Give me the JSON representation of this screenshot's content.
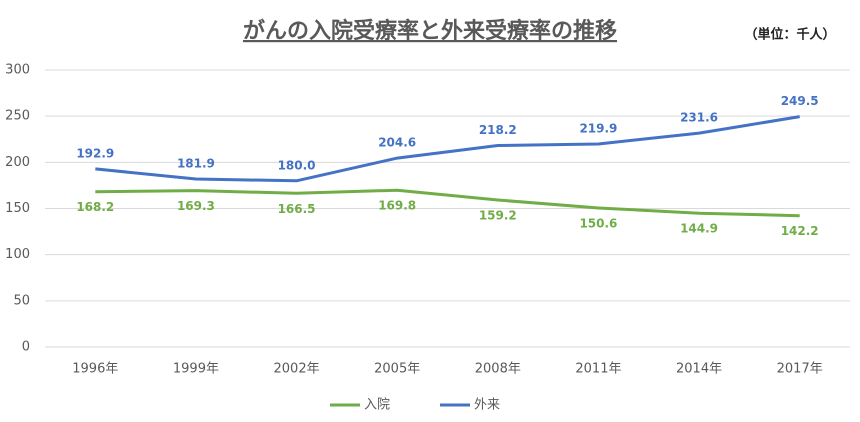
{
  "chart_data": {
    "type": "line",
    "title": "がんの入院受療率と外来受療率の推移",
    "subtitle": "（単位：千人）",
    "categories": [
      "1996年",
      "1999年",
      "2002年",
      "2005年",
      "2008年",
      "2011年",
      "2014年",
      "2017年"
    ],
    "series": [
      {
        "name": "入院",
        "color": "#70ad47",
        "label_position": "below",
        "values": [
          168.2,
          169.3,
          166.5,
          169.8,
          159.2,
          150.6,
          144.9,
          142.2
        ],
        "value_labels": [
          "168.2",
          "169.3",
          "166.5",
          "169.8",
          "159.2",
          "150.6",
          "144.9",
          "142.2"
        ]
      },
      {
        "name": "外来",
        "color": "#4472c4",
        "label_position": "above",
        "values": [
          192.9,
          181.9,
          180.0,
          204.6,
          218.2,
          219.9,
          231.6,
          249.5
        ],
        "value_labels": [
          "192.9",
          "181.9",
          "180.0",
          "204.6",
          "218.2",
          "219.9",
          "231.6",
          "249.5"
        ]
      }
    ],
    "ylim": [
      0,
      300
    ],
    "yticks": [
      0,
      50,
      100,
      150,
      200,
      250,
      300
    ],
    "grid": true,
    "legend": "bottom"
  }
}
